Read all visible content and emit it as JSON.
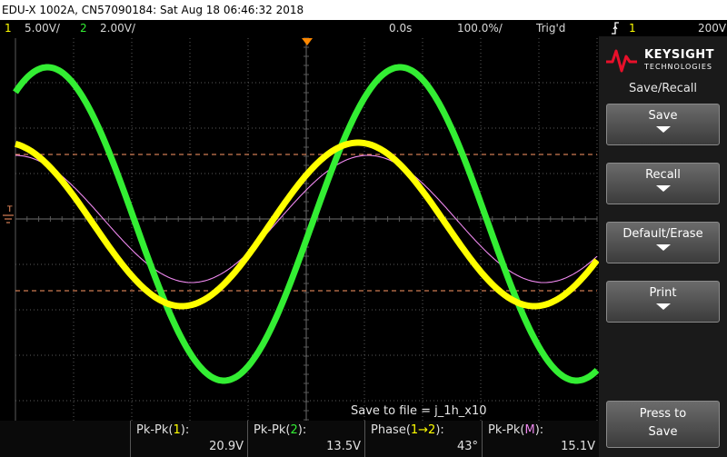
{
  "title_bar": {
    "text": "EDU-X 1002A, CN57090184: Sat Aug 18 06:46:32 2018"
  },
  "status_bar": {
    "ch1_num": "1",
    "ch1_scale": "5.00V/",
    "ch2_num": "2",
    "ch2_scale": "2.00V/",
    "time_offset": "0.0s",
    "time_scale": "100.0%/",
    "trigger_state": "Trig'd",
    "trigger_icon": "trigger-edge-icon",
    "trigger_source": "1",
    "trigger_level": "200V"
  },
  "screen_markers": {
    "trigger_level_marker": "T"
  },
  "brand": {
    "name": "KEYSIGHT",
    "sub": "TECHNOLOGIES"
  },
  "menu": {
    "title": "Save/Recall",
    "softkeys": [
      {
        "label": "Save"
      },
      {
        "label": "Recall"
      },
      {
        "label": "Default/Erase"
      },
      {
        "label": "Print"
      }
    ],
    "press_to_save": {
      "line1": "Press to",
      "line2": "Save"
    }
  },
  "save_to_file": {
    "text": "Save to file = j_1h_x10"
  },
  "measurements": [
    {
      "pre": "Pk-Pk(",
      "src": "1",
      "post": "):",
      "value": "20.9V"
    },
    {
      "pre": "Pk-Pk(",
      "src": "2",
      "post": "):",
      "value": "13.5V"
    },
    {
      "pre": "Phase(",
      "src": "1→2",
      "post": "):",
      "value": "43°"
    },
    {
      "pre": "Pk-Pk(",
      "src": "M",
      "post": "):",
      "value": "15.1V"
    }
  ],
  "colors": {
    "ch1": "#ffff00",
    "ch2": "#33ee33",
    "math": "#ee88ee",
    "cursor": "#ff9966",
    "grid": "#5a5a5a"
  },
  "waveforms": {
    "ch1": {
      "amplitude_div": 1.8,
      "phase_deg": 0,
      "offset_div": 0.6
    },
    "ch2": {
      "amplitude_div": 3.45,
      "phase_deg": 43,
      "offset_div": 0.55
    },
    "math": {
      "amplitude_div": 1.4,
      "phase_deg": 10,
      "offset_div": 0.0
    }
  }
}
